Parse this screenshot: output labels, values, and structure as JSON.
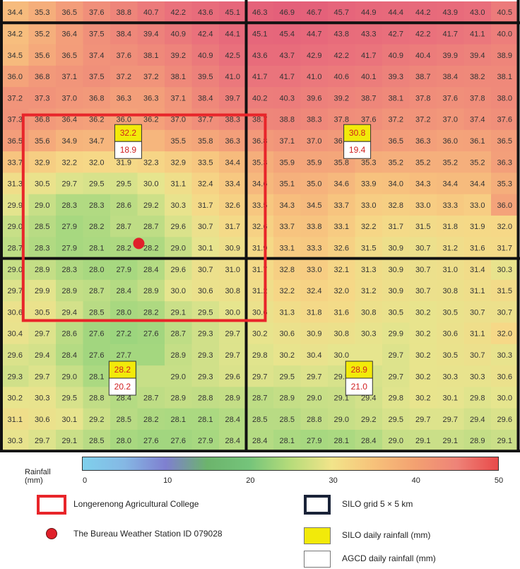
{
  "map": {
    "grid": [
      [
        34.4,
        35.3,
        36.5,
        37.6,
        38.8,
        40.7,
        42.2,
        43.6,
        45.1,
        46.3,
        46.9,
        46.7,
        45.7,
        44.9,
        44.4,
        44.2,
        43.9,
        43.0,
        40.5
      ],
      [
        34.2,
        35.2,
        36.4,
        37.5,
        38.4,
        39.4,
        40.9,
        42.4,
        44.1,
        45.1,
        45.4,
        44.7,
        43.8,
        43.3,
        42.7,
        42.2,
        41.7,
        41.1,
        40.0
      ],
      [
        34.5,
        35.6,
        36.5,
        37.4,
        37.6,
        38.1,
        39.2,
        40.9,
        42.5,
        43.6,
        43.7,
        42.9,
        42.2,
        41.7,
        40.9,
        40.4,
        39.9,
        39.4,
        38.9
      ],
      [
        36.0,
        36.8,
        37.1,
        37.5,
        37.2,
        37.2,
        38.1,
        39.5,
        41.0,
        41.7,
        41.7,
        41.0,
        40.6,
        40.1,
        39.3,
        38.7,
        38.4,
        38.2,
        38.1
      ],
      [
        37.2,
        37.3,
        37.0,
        36.8,
        36.3,
        36.3,
        37.1,
        38.4,
        39.7,
        40.2,
        40.3,
        39.6,
        39.2,
        38.7,
        38.1,
        37.8,
        37.6,
        37.8,
        38.0
      ],
      [
        37.3,
        36.8,
        36.4,
        36.2,
        36.0,
        36.2,
        37.0,
        37.7,
        38.3,
        38.7,
        38.8,
        38.3,
        37.8,
        37.6,
        37.2,
        37.2,
        37.0,
        37.4,
        37.6
      ],
      [
        36.5,
        35.6,
        34.9,
        34.7,
        34.7,
        null,
        35.5,
        35.8,
        36.3,
        36.8,
        37.1,
        37.0,
        36.7,
        null,
        36.5,
        36.3,
        36.0,
        36.1,
        36.5
      ],
      [
        33.7,
        32.9,
        32.2,
        32.0,
        31.9,
        32.3,
        32.9,
        33.5,
        34.4,
        35.3,
        35.9,
        35.9,
        35.8,
        35.3,
        35.2,
        35.2,
        35.2,
        35.2,
        36.3
      ],
      [
        31.3,
        30.5,
        29.7,
        29.5,
        29.5,
        30.0,
        31.1,
        32.4,
        33.4,
        34.6,
        35.1,
        35.0,
        34.6,
        33.9,
        34.0,
        34.3,
        34.4,
        34.4,
        35.3
      ],
      [
        29.9,
        29.0,
        28.3,
        28.3,
        28.6,
        29.2,
        30.3,
        31.7,
        32.6,
        33.5,
        34.3,
        34.5,
        33.7,
        33.0,
        32.8,
        33.0,
        33.3,
        33.0,
        36.0
      ],
      [
        29.0,
        28.5,
        27.9,
        28.2,
        28.7,
        28.7,
        29.6,
        30.7,
        31.7,
        32.6,
        33.7,
        33.8,
        33.1,
        32.2,
        31.7,
        31.5,
        31.8,
        31.9,
        32.0
      ],
      [
        28.7,
        28.3,
        27.9,
        28.1,
        28.2,
        28.2,
        29.0,
        30.1,
        30.9,
        31.9,
        33.1,
        33.3,
        32.6,
        31.5,
        30.9,
        30.7,
        31.2,
        31.6,
        31.7
      ],
      [
        29.0,
        28.9,
        28.3,
        28.0,
        27.9,
        28.4,
        29.6,
        30.7,
        31.0,
        31.7,
        32.8,
        33.0,
        32.1,
        31.3,
        30.9,
        30.7,
        31.0,
        31.4,
        30.3
      ],
      [
        29.7,
        29.9,
        28.9,
        28.7,
        28.4,
        28.9,
        30.0,
        30.6,
        30.8,
        31.2,
        32.2,
        32.4,
        32.0,
        31.2,
        30.9,
        30.7,
        30.8,
        31.1,
        31.5
      ],
      [
        30.6,
        30.5,
        29.4,
        28.5,
        28.0,
        28.2,
        29.1,
        29.5,
        30.0,
        30.6,
        31.3,
        31.8,
        31.6,
        30.8,
        30.5,
        30.2,
        30.5,
        30.7,
        30.7
      ],
      [
        30.4,
        29.7,
        28.6,
        27.6,
        27.2,
        27.6,
        28.7,
        29.3,
        29.7,
        30.2,
        30.6,
        30.9,
        30.8,
        30.3,
        29.9,
        30.2,
        30.6,
        31.1,
        32.0
      ],
      [
        29.6,
        29.4,
        28.4,
        27.6,
        27.7,
        null,
        28.9,
        29.3,
        29.7,
        29.8,
        30.2,
        30.4,
        30.0,
        null,
        29.7,
        30.2,
        30.5,
        30.7,
        30.3
      ],
      [
        29.3,
        29.7,
        29.0,
        28.1,
        null,
        null,
        29.0,
        29.3,
        29.6,
        29.7,
        29.5,
        29.7,
        29.5,
        null,
        29.7,
        30.2,
        30.3,
        30.3,
        30.6
      ],
      [
        30.2,
        30.3,
        29.5,
        28.8,
        28.4,
        28.7,
        28.9,
        28.8,
        28.9,
        28.7,
        28.9,
        29.0,
        29.1,
        29.4,
        29.8,
        30.2,
        30.1,
        29.8,
        30.0
      ],
      [
        31.1,
        30.6,
        30.1,
        29.2,
        28.5,
        28.2,
        28.1,
        28.1,
        28.4,
        28.5,
        28.5,
        28.8,
        29.0,
        29.2,
        29.5,
        29.7,
        29.7,
        29.4,
        29.6
      ],
      [
        30.3,
        29.7,
        29.1,
        28.5,
        28.0,
        27.6,
        27.6,
        27.9,
        28.4,
        28.4,
        28.1,
        27.9,
        28.1,
        28.4,
        29.0,
        29.1,
        29.1,
        28.9,
        29.1
      ]
    ],
    "rainfall_boxes": [
      {
        "silo": "32.2",
        "agcd": "18.9"
      },
      {
        "silo": "30.8",
        "agcd": "19.4"
      },
      {
        "silo": "28.2",
        "agcd": "20.2"
      },
      {
        "silo": "28.9",
        "agcd": "21.0"
      }
    ],
    "colors": {
      "college_outline": "#e8252a",
      "station_marker": "#e0202a",
      "silo_grid": "#111111",
      "silo_fill": "#f2ea0a",
      "agcd_fill": "#ffffff",
      "box_text": "#d02020"
    }
  },
  "legend": {
    "rainfall_label_line1": "Rainfall",
    "rainfall_label_line2": "(mm)",
    "ticks": [
      "0",
      "10",
      "20",
      "30",
      "40",
      "50"
    ],
    "colorbar_stops": [
      "#7fd0ec",
      "#85b8e4",
      "#7f7fd0",
      "#6cb46c",
      "#74c47a",
      "#b6dc7a",
      "#f2e48a",
      "#f7c27a",
      "#f3a171",
      "#ee8378",
      "#e84a4a"
    ],
    "items": {
      "college": "Longerenong Agricultural College",
      "station": "The Bureau Weather Station ID 079028",
      "silo_grid": "SILO grid 5 × 5 km",
      "silo_rain": "SILO daily rainfall (mm)",
      "agcd_rain": "AGCD daily rainfall (mm)"
    }
  }
}
